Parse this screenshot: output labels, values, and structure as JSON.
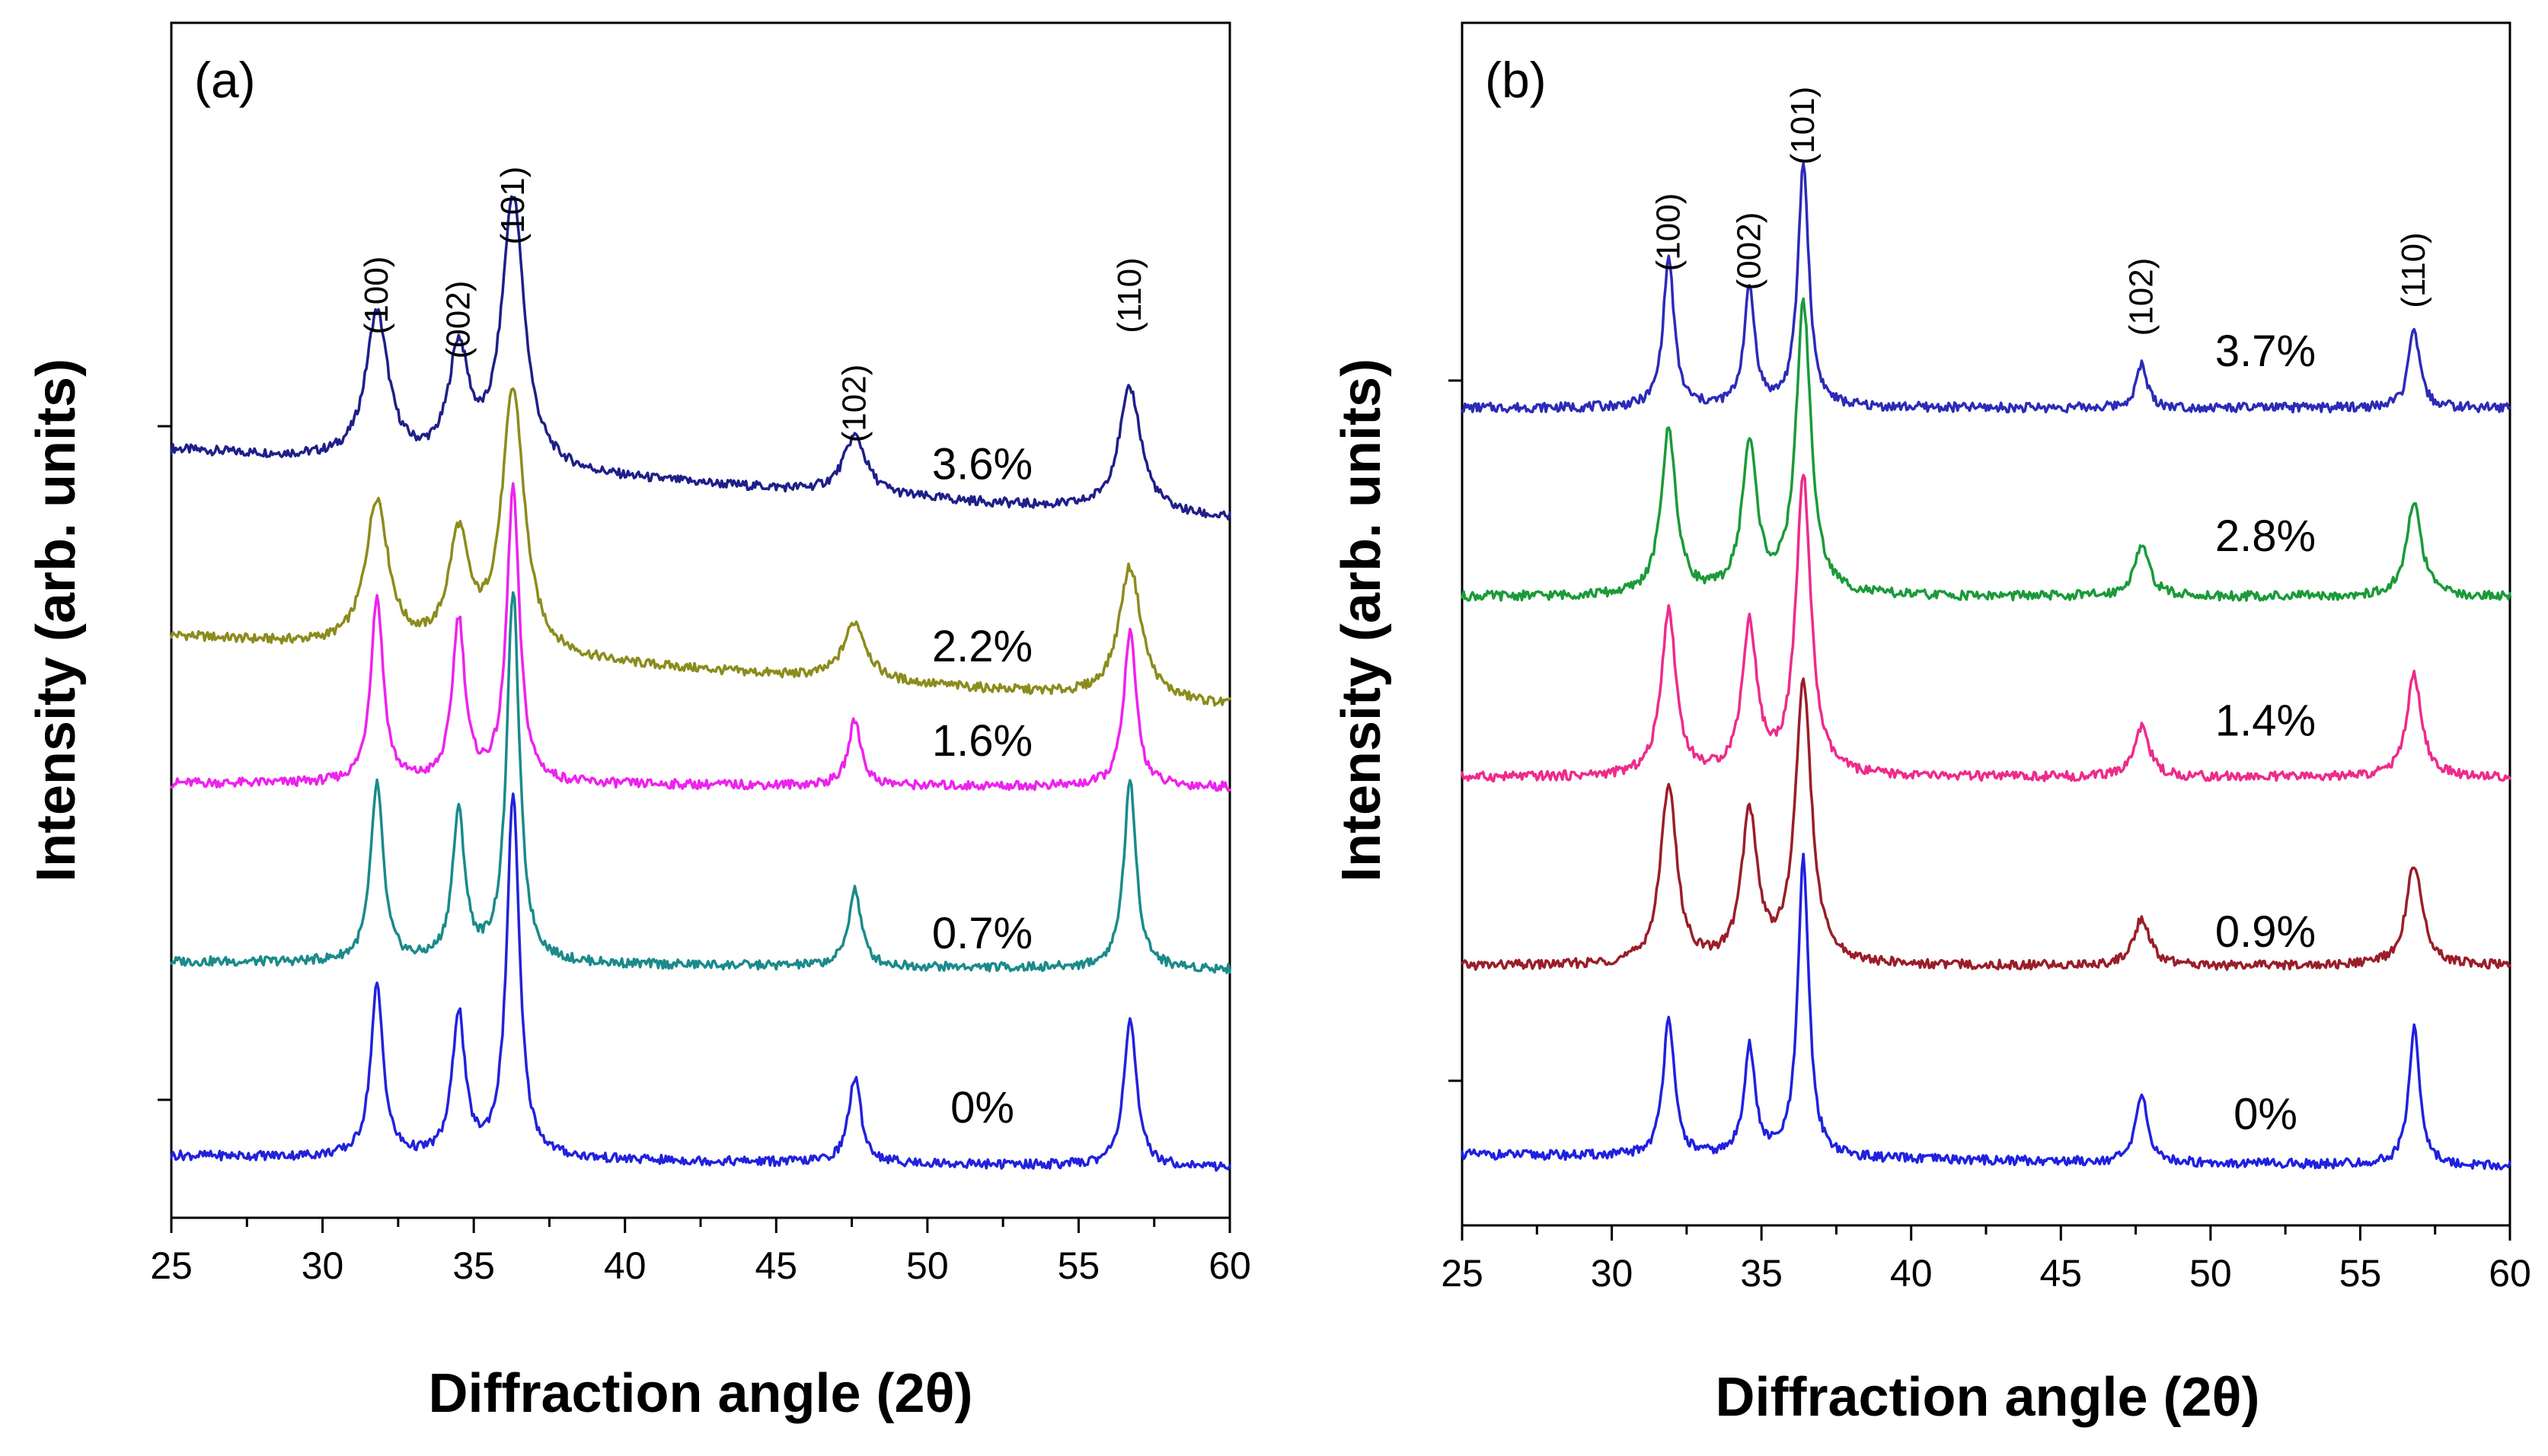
{
  "chart_data": [
    {
      "panel": "(a)",
      "type": "line",
      "xlabel": "Diffraction angle (2θ)",
      "ylabel": "Intensity (arb. units)",
      "xlim": [
        25,
        60
      ],
      "x_ticks": [
        "25",
        "30",
        "35",
        "40",
        "45",
        "50",
        "55",
        "60"
      ],
      "y_ticks_labeled": false,
      "peak_labels": [
        {
          "label": "(100)",
          "x": 31.8
        },
        {
          "label": "(002)",
          "x": 34.5
        },
        {
          "label": "(101)",
          "x": 36.3
        },
        {
          "label": "(102)",
          "x": 47.6
        },
        {
          "label": "(110)",
          "x": 56.7
        }
      ],
      "series": [
        {
          "name": "3.6%",
          "color": "#1f1f8a",
          "baseline": 9.1,
          "slope": -0.9,
          "peaks": [
            {
              "x": 31.8,
              "h": 1.9,
              "w": 0.45
            },
            {
              "x": 34.5,
              "h": 1.45,
              "w": 0.4
            },
            {
              "x": 36.3,
              "h": 3.5,
              "w": 0.45
            },
            {
              "x": 47.6,
              "h": 0.75,
              "w": 0.45
            },
            {
              "x": 56.7,
              "h": 1.6,
              "w": 0.45
            }
          ]
        },
        {
          "name": "2.2%",
          "color": "#8c8c1e",
          "baseline": 6.7,
          "slope": -0.9,
          "peaks": [
            {
              "x": 31.8,
              "h": 1.9,
              "w": 0.45
            },
            {
              "x": 34.5,
              "h": 1.45,
              "w": 0.4
            },
            {
              "x": 36.3,
              "h": 3.4,
              "w": 0.45
            },
            {
              "x": 47.6,
              "h": 0.75,
              "w": 0.45
            },
            {
              "x": 56.7,
              "h": 1.7,
              "w": 0.45
            }
          ]
        },
        {
          "name": "1.6%",
          "color": "#ee22ee",
          "baseline": 4.8,
          "slope": -0.05,
          "peaks": [
            {
              "x": 31.8,
              "h": 2.4,
              "w": 0.25
            },
            {
              "x": 34.5,
              "h": 2.1,
              "w": 0.25
            },
            {
              "x": 36.3,
              "h": 3.8,
              "w": 0.25
            },
            {
              "x": 47.6,
              "h": 0.85,
              "w": 0.25
            },
            {
              "x": 56.7,
              "h": 2.0,
              "w": 0.25
            }
          ]
        },
        {
          "name": "0.7%",
          "color": "#1b8a8a",
          "baseline": 2.5,
          "slope": -0.1,
          "peaks": [
            {
              "x": 31.8,
              "h": 2.3,
              "w": 0.25
            },
            {
              "x": 34.5,
              "h": 1.9,
              "w": 0.25
            },
            {
              "x": 36.3,
              "h": 4.8,
              "w": 0.25
            },
            {
              "x": 47.6,
              "h": 1.0,
              "w": 0.25
            },
            {
              "x": 56.7,
              "h": 2.4,
              "w": 0.25
            }
          ]
        },
        {
          "name": "0%",
          "color": "#2222dd",
          "baseline": 0.0,
          "slope": -0.15,
          "peaks": [
            {
              "x": 31.8,
              "h": 2.2,
              "w": 0.25
            },
            {
              "x": 34.5,
              "h": 1.85,
              "w": 0.25
            },
            {
              "x": 36.3,
              "h": 4.7,
              "w": 0.25
            },
            {
              "x": 47.6,
              "h": 1.1,
              "w": 0.25
            },
            {
              "x": 56.7,
              "h": 1.9,
              "w": 0.25
            }
          ]
        }
      ]
    },
    {
      "panel": "(b)",
      "type": "line",
      "xlabel": "Diffraction angle (2θ)",
      "ylabel": "Intensity (arb. units)",
      "xlim": [
        25,
        60
      ],
      "x_ticks": [
        "25",
        "30",
        "35",
        "40",
        "45",
        "50",
        "55",
        "60"
      ],
      "y_ticks_labeled": false,
      "peak_labels": [
        {
          "label": "(100)",
          "x": 31.9
        },
        {
          "label": "(002)",
          "x": 34.6
        },
        {
          "label": "(101)",
          "x": 36.4
        },
        {
          "label": "(102)",
          "x": 47.7
        },
        {
          "label": "(110)",
          "x": 56.8
        }
      ],
      "series": [
        {
          "name": "3.7%",
          "color": "#2b2bb8",
          "baseline": 9.5,
          "slope": 0.0,
          "peaks": [
            {
              "x": 31.9,
              "h": 1.9,
              "w": 0.22
            },
            {
              "x": 34.6,
              "h": 1.5,
              "w": 0.22
            },
            {
              "x": 36.4,
              "h": 3.1,
              "w": 0.22
            },
            {
              "x": 47.7,
              "h": 0.55,
              "w": 0.22
            },
            {
              "x": 56.8,
              "h": 1.0,
              "w": 0.22
            }
          ]
        },
        {
          "name": "2.8%",
          "color": "#1b9a3a",
          "baseline": 7.1,
          "slope": 0.0,
          "peaks": [
            {
              "x": 31.9,
              "h": 2.1,
              "w": 0.3
            },
            {
              "x": 34.6,
              "h": 1.9,
              "w": 0.3
            },
            {
              "x": 36.4,
              "h": 3.7,
              "w": 0.3
            },
            {
              "x": 47.7,
              "h": 0.65,
              "w": 0.3
            },
            {
              "x": 56.8,
              "h": 1.2,
              "w": 0.3
            }
          ]
        },
        {
          "name": "1.4%",
          "color": "#ee2a8a",
          "baseline": 4.8,
          "slope": 0.0,
          "peaks": [
            {
              "x": 31.9,
              "h": 2.1,
              "w": 0.3
            },
            {
              "x": 34.6,
              "h": 1.9,
              "w": 0.3
            },
            {
              "x": 36.4,
              "h": 3.8,
              "w": 0.3
            },
            {
              "x": 47.7,
              "h": 0.65,
              "w": 0.3
            },
            {
              "x": 56.8,
              "h": 1.3,
              "w": 0.3
            }
          ]
        },
        {
          "name": "0.9%",
          "color": "#9a1e2a",
          "baseline": 2.4,
          "slope": 0.0,
          "peaks": [
            {
              "x": 31.9,
              "h": 2.3,
              "w": 0.32
            },
            {
              "x": 34.6,
              "h": 1.9,
              "w": 0.32
            },
            {
              "x": 36.4,
              "h": 3.6,
              "w": 0.32
            },
            {
              "x": 47.7,
              "h": 0.6,
              "w": 0.32
            },
            {
              "x": 56.8,
              "h": 1.3,
              "w": 0.32
            }
          ]
        },
        {
          "name": "0%",
          "color": "#2020e0",
          "baseline": 0.0,
          "slope": -0.15,
          "peaks": [
            {
              "x": 31.9,
              "h": 1.8,
              "w": 0.22
            },
            {
              "x": 34.6,
              "h": 1.4,
              "w": 0.22
            },
            {
              "x": 36.4,
              "h": 3.8,
              "w": 0.22
            },
            {
              "x": 47.7,
              "h": 0.9,
              "w": 0.22
            },
            {
              "x": 56.8,
              "h": 1.75,
              "w": 0.22
            }
          ]
        }
      ]
    }
  ]
}
